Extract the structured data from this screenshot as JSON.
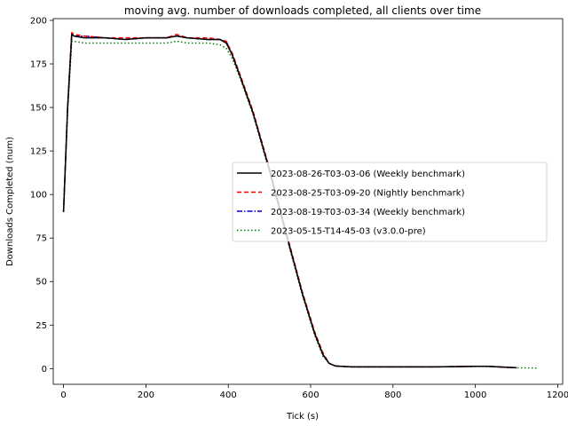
{
  "chart_data": {
    "type": "line",
    "title": "moving avg. number of downloads completed, all clients over time",
    "xlabel": "Tick (s)",
    "ylabel": "Downloads Completed (num)",
    "xlim": [
      -25,
      1212
    ],
    "ylim": [
      -9,
      201
    ],
    "xticks": [
      0,
      200,
      400,
      600,
      800,
      1000,
      1200
    ],
    "yticks": [
      0,
      25,
      50,
      75,
      100,
      125,
      150,
      175,
      200
    ],
    "grid": false,
    "legend_position": "center-right",
    "series": [
      {
        "name": "2023-08-26-T03-03-06 (Weekly benchmark)",
        "color": "#000000",
        "style": "solid",
        "x": [
          0,
          10,
          20,
          25,
          50,
          100,
          150,
          200,
          250,
          275,
          300,
          350,
          380,
          395,
          410,
          430,
          460,
          500,
          540,
          580,
          610,
          630,
          645,
          660,
          700,
          800,
          900,
          1000,
          1030,
          1100
        ],
        "y": [
          90,
          150,
          192,
          191,
          190,
          190,
          189,
          190,
          190,
          191,
          190,
          189,
          189,
          187,
          180,
          167,
          147,
          114,
          78,
          43,
          20,
          8,
          3,
          1.5,
          1,
          1,
          1,
          1.3,
          1.3,
          0.5
        ]
      },
      {
        "name": "2023-08-25-T03-09-20 (Nightly benchmark)",
        "color": "#ff0000",
        "style": "dashed",
        "x": [
          0,
          10,
          20,
          25,
          50,
          100,
          150,
          200,
          250,
          275,
          300,
          350,
          380,
          395,
          410,
          430,
          460,
          500,
          540,
          580,
          610,
          630,
          645,
          660,
          700,
          800,
          900,
          1000,
          1030,
          1100
        ],
        "y": [
          90,
          152,
          193,
          192,
          191,
          190,
          190,
          190,
          190,
          192,
          190,
          190,
          189,
          188,
          181,
          168,
          148,
          115,
          79,
          44,
          21,
          9,
          3,
          1.5,
          1,
          1,
          1,
          1.3,
          1.3,
          0.5
        ]
      },
      {
        "name": "2023-08-19-T03-03-34 (Weekly benchmark)",
        "color": "#0000cc",
        "style": "dashdot",
        "x": [
          0,
          10,
          20,
          25,
          50,
          100,
          150,
          200,
          250,
          275,
          300,
          350,
          380,
          395,
          410,
          430,
          460,
          500,
          540,
          580,
          610,
          630,
          645,
          660,
          700,
          800,
          900,
          1000,
          1030,
          1100
        ],
        "y": [
          90,
          151,
          193,
          191,
          191,
          190,
          189,
          190,
          190,
          191,
          190,
          189,
          189,
          188,
          180,
          167,
          147,
          114,
          78,
          43,
          20,
          8,
          3,
          1.5,
          1,
          1,
          1,
          1.3,
          1.3,
          0.5
        ]
      },
      {
        "name": "2023-05-15-T14-45-03 (v3.0.0-pre)",
        "color": "#008000",
        "style": "dotted",
        "x": [
          0,
          10,
          20,
          25,
          50,
          100,
          150,
          200,
          250,
          275,
          300,
          350,
          380,
          395,
          410,
          430,
          460,
          500,
          540,
          580,
          610,
          630,
          645,
          660,
          700,
          800,
          900,
          1000,
          1030,
          1100,
          1150
        ],
        "y": [
          90,
          148,
          188,
          188,
          187,
          187,
          187,
          187,
          187,
          188,
          187,
          187,
          186,
          184,
          178,
          166,
          146,
          113,
          77,
          42,
          19,
          7,
          3,
          1.5,
          1,
          1,
          1,
          1.2,
          1.2,
          0.5,
          0.3
        ]
      }
    ]
  }
}
